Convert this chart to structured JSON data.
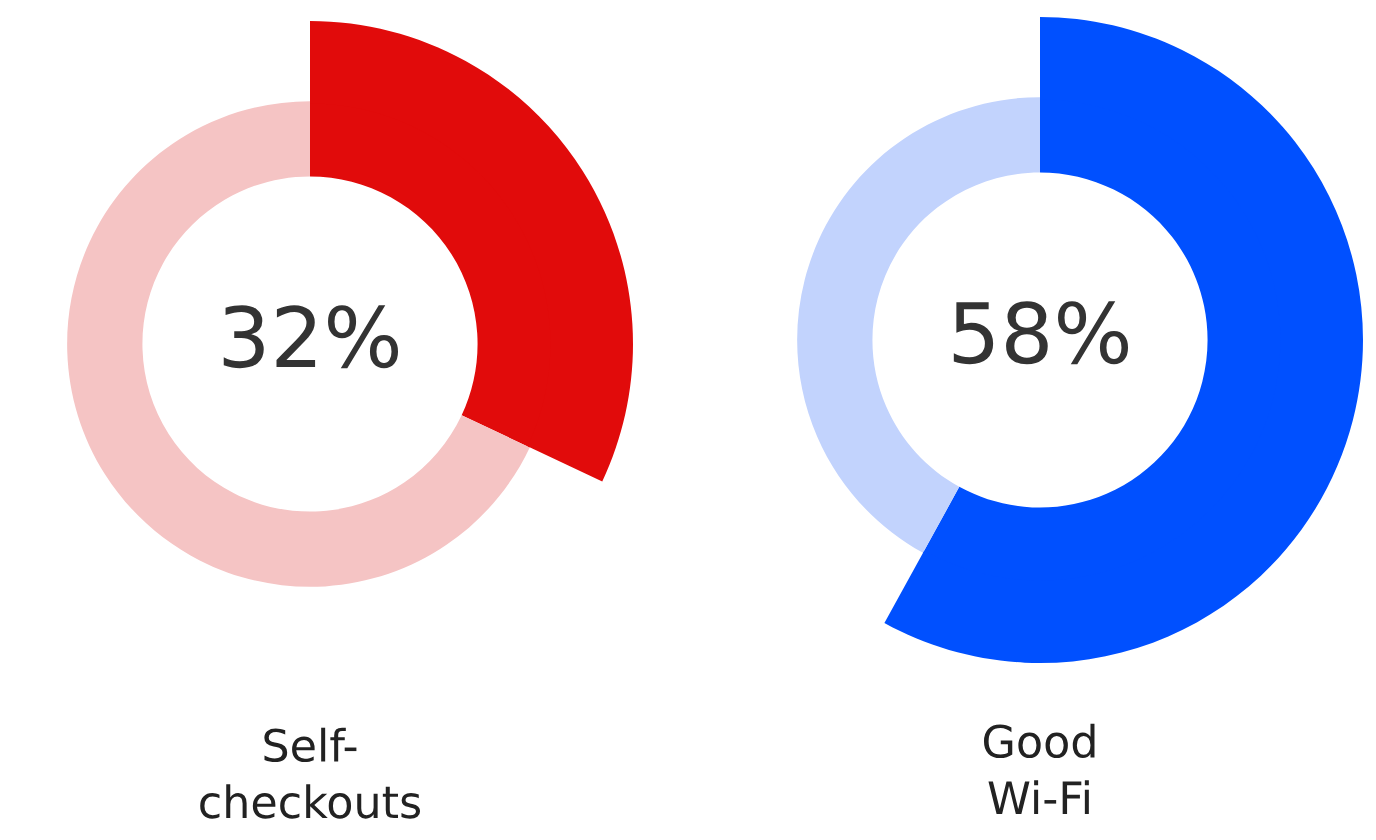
{
  "chart_data": [
    {
      "type": "donut",
      "title": "Self-\ncheckouts",
      "categories": [
        null,
        null
      ],
      "values": [
        32,
        68
      ],
      "colors": [
        "#e10b0b",
        "#f5c4c4"
      ],
      "value_labels": [
        "32%",
        null
      ]
    },
    {
      "type": "donut",
      "title": "Good\nWi-Fi",
      "categories": [
        null,
        null
      ],
      "values": [
        58,
        42
      ],
      "colors": [
        "#0050ff",
        "#c2d3fd"
      ],
      "value_labels": [
        "58%",
        null
      ]
    }
  ]
}
